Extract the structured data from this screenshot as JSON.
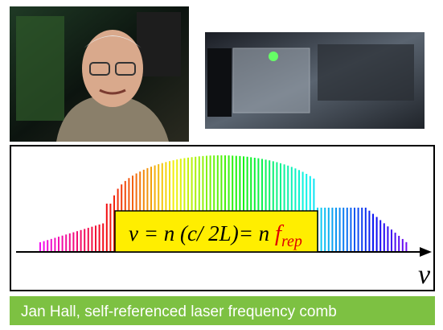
{
  "diagram": {
    "formula": {
      "main": "ν = n (c/ 2L)= n ",
      "f": "f",
      "sub": "rep"
    },
    "axis_label": "ν"
  },
  "caption": "Jan Hall, self-referenced laser frequency comb"
}
